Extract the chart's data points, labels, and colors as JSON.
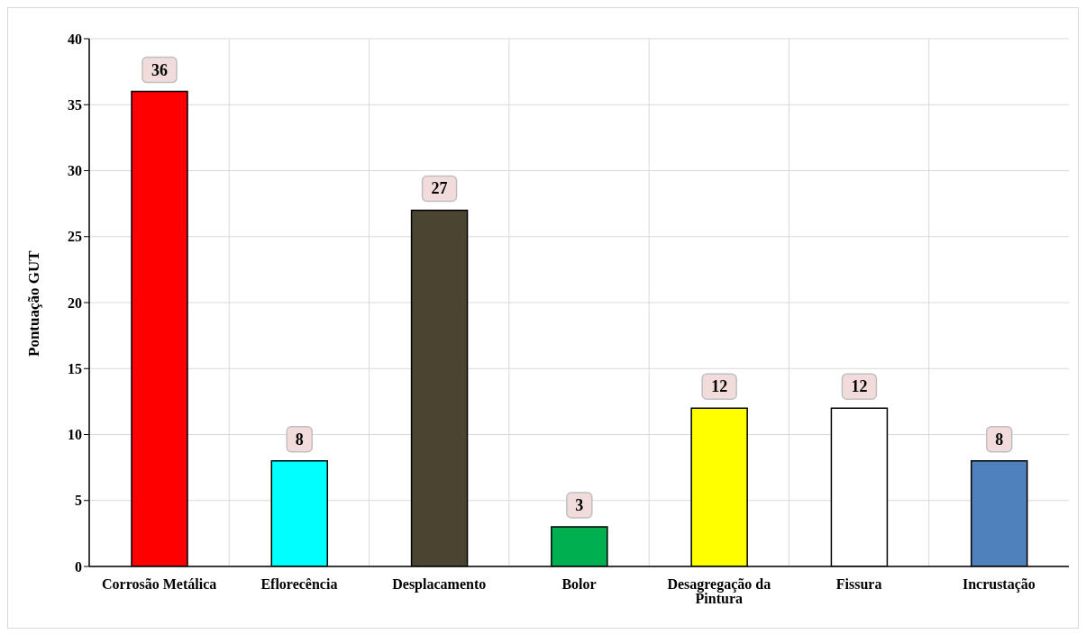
{
  "chart_data": {
    "type": "bar",
    "ylabel": "Pontuação GUT",
    "categories": [
      "Corrosão Metálica",
      "Eflorecência",
      "Desplacamento",
      "Bolor",
      "Desagregação da Pintura",
      "Fissura",
      "Incrustação"
    ],
    "values": [
      36,
      8,
      27,
      3,
      12,
      12,
      8
    ],
    "colors": [
      "#ff0000",
      "#00ffff",
      "#4a4530",
      "#00b050",
      "#ffff00",
      "#ffffff",
      "#4f81bd"
    ],
    "ylim": [
      0,
      40
    ],
    "yticks": [
      0,
      5,
      10,
      15,
      20,
      25,
      30,
      35,
      40
    ],
    "grid": true,
    "data_labels": true
  }
}
